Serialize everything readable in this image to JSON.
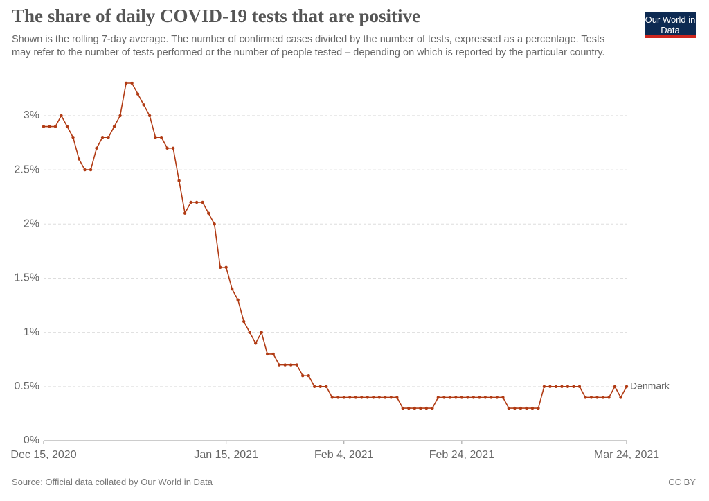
{
  "chart_data": {
    "type": "line",
    "title": "The share of daily COVID-19 tests that are positive",
    "subtitle": "Shown is the rolling 7-day average. The number of confirmed cases divided by the number of tests, expressed as a percentage. Tests may refer to the number of tests performed or the number of people tested – depending on which is reported by the particular country.",
    "logo": "Our World in Data",
    "source": "Source: Official data collated by Our World in Data",
    "license": "CC BY",
    "x": [
      "2020-12-15",
      "2020-12-16",
      "2020-12-17",
      "2020-12-18",
      "2020-12-19",
      "2020-12-20",
      "2020-12-21",
      "2020-12-22",
      "2020-12-23",
      "2020-12-24",
      "2020-12-25",
      "2020-12-26",
      "2020-12-27",
      "2020-12-28",
      "2020-12-29",
      "2020-12-30",
      "2020-12-31",
      "2021-01-01",
      "2021-01-02",
      "2021-01-03",
      "2021-01-04",
      "2021-01-05",
      "2021-01-06",
      "2021-01-07",
      "2021-01-08",
      "2021-01-09",
      "2021-01-10",
      "2021-01-11",
      "2021-01-12",
      "2021-01-13",
      "2021-01-14",
      "2021-01-15",
      "2021-01-16",
      "2021-01-17",
      "2021-01-18",
      "2021-01-19",
      "2021-01-20",
      "2021-01-21",
      "2021-01-22",
      "2021-01-23",
      "2021-01-24",
      "2021-01-25",
      "2021-01-26",
      "2021-01-27",
      "2021-01-28",
      "2021-01-29",
      "2021-01-30",
      "2021-01-31",
      "2021-02-01",
      "2021-02-02",
      "2021-02-03",
      "2021-02-04",
      "2021-02-05",
      "2021-02-06",
      "2021-02-07",
      "2021-02-08",
      "2021-02-09",
      "2021-02-10",
      "2021-02-11",
      "2021-02-12",
      "2021-02-13",
      "2021-02-14",
      "2021-02-15",
      "2021-02-16",
      "2021-02-17",
      "2021-02-18",
      "2021-02-19",
      "2021-02-20",
      "2021-02-21",
      "2021-02-22",
      "2021-02-23",
      "2021-02-24",
      "2021-02-25",
      "2021-02-26",
      "2021-02-27",
      "2021-02-28",
      "2021-03-01",
      "2021-03-02",
      "2021-03-03",
      "2021-03-04",
      "2021-03-05",
      "2021-03-06",
      "2021-03-07",
      "2021-03-08",
      "2021-03-09",
      "2021-03-10",
      "2021-03-11",
      "2021-03-12",
      "2021-03-13",
      "2021-03-14",
      "2021-03-15",
      "2021-03-16",
      "2021-03-17",
      "2021-03-18",
      "2021-03-19",
      "2021-03-20",
      "2021-03-21",
      "2021-03-22",
      "2021-03-23",
      "2021-03-24"
    ],
    "series": [
      {
        "name": "Denmark",
        "color": "#b13b14",
        "values": [
          2.9,
          2.9,
          2.9,
          3.0,
          2.9,
          2.8,
          2.6,
          2.5,
          2.5,
          2.7,
          2.8,
          2.8,
          2.9,
          3.0,
          3.3,
          3.3,
          3.2,
          3.1,
          3.0,
          2.8,
          2.8,
          2.7,
          2.7,
          2.4,
          2.1,
          2.2,
          2.2,
          2.2,
          2.1,
          2.0,
          1.6,
          1.6,
          1.4,
          1.3,
          1.1,
          1.0,
          0.9,
          1.0,
          0.8,
          0.8,
          0.7,
          0.7,
          0.7,
          0.7,
          0.6,
          0.6,
          0.5,
          0.5,
          0.5,
          0.4,
          0.4,
          0.4,
          0.4,
          0.4,
          0.4,
          0.4,
          0.4,
          0.4,
          0.4,
          0.4,
          0.4,
          0.3,
          0.3,
          0.3,
          0.3,
          0.3,
          0.3,
          0.4,
          0.4,
          0.4,
          0.4,
          0.4,
          0.4,
          0.4,
          0.4,
          0.4,
          0.4,
          0.4,
          0.4,
          0.3,
          0.3,
          0.3,
          0.3,
          0.3,
          0.3,
          0.5,
          0.5,
          0.5,
          0.5,
          0.5,
          0.5,
          0.5,
          0.4,
          0.4,
          0.4,
          0.4,
          0.4,
          0.5,
          0.4,
          0.5
        ]
      }
    ],
    "xlim": [
      "2020-12-15",
      "2021-03-24"
    ],
    "xticks": [
      {
        "value": "2020-12-15",
        "label": "Dec 15, 2020"
      },
      {
        "value": "2021-01-15",
        "label": "Jan 15, 2021"
      },
      {
        "value": "2021-02-04",
        "label": "Feb 4, 2021"
      },
      {
        "value": "2021-02-24",
        "label": "Feb 24, 2021"
      },
      {
        "value": "2021-03-24",
        "label": "Mar 24, 2021"
      }
    ],
    "ylim": [
      0,
      3.3
    ],
    "yticks": [
      {
        "value": 0,
        "label": "0%"
      },
      {
        "value": 0.5,
        "label": "0.5%"
      },
      {
        "value": 1,
        "label": "1%"
      },
      {
        "value": 1.5,
        "label": "1.5%"
      },
      {
        "value": 2,
        "label": "2%"
      },
      {
        "value": 2.5,
        "label": "2.5%"
      },
      {
        "value": 3,
        "label": "3%"
      }
    ],
    "grid": true
  }
}
